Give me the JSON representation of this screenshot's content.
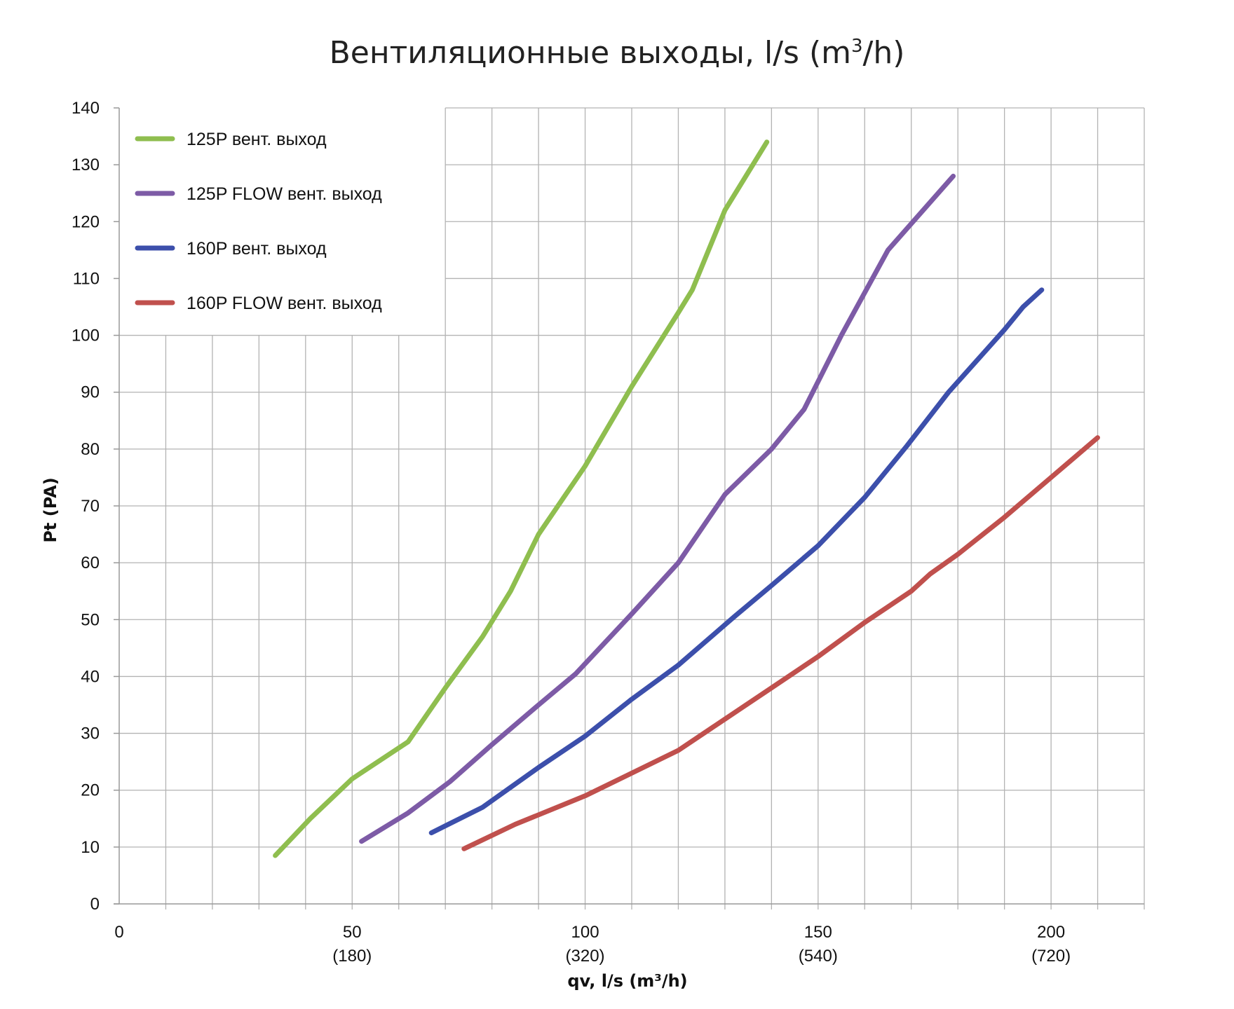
{
  "chart_data": {
    "type": "line",
    "title": {
      "main": "Вентиляционные выходы, l/s (m",
      "sup": "3",
      "end": "/h)"
    },
    "xlabel": "qv, l/s (m³/h)",
    "ylabel": "Pt (PA)",
    "xlim": [
      0,
      220
    ],
    "ylim": [
      0,
      140
    ],
    "x_grid_step": 10,
    "y_grid_step": 10,
    "grid": true,
    "legend_position": "top-left",
    "x_ticks": [
      {
        "value": 0,
        "label": "0",
        "sub": ""
      },
      {
        "value": 50,
        "label": "50",
        "sub": "(180)"
      },
      {
        "value": 100,
        "label": "100",
        "sub": "(320)"
      },
      {
        "value": 150,
        "label": "150",
        "sub": "(540)"
      },
      {
        "value": 200,
        "label": "200",
        "sub": "(720)"
      }
    ],
    "y_ticks": [
      0,
      10,
      20,
      30,
      40,
      50,
      60,
      70,
      80,
      90,
      100,
      110,
      120,
      130,
      140
    ],
    "series": [
      {
        "name": "125P вент. выход",
        "color": "#8fbe4f",
        "points": [
          [
            33.5,
            8.5
          ],
          [
            41,
            15
          ],
          [
            50,
            22
          ],
          [
            62,
            28.5
          ],
          [
            70,
            38
          ],
          [
            78,
            47
          ],
          [
            84,
            55
          ],
          [
            90,
            65
          ],
          [
            100,
            77
          ],
          [
            110,
            91
          ],
          [
            120,
            104
          ],
          [
            123,
            108
          ],
          [
            130,
            122
          ],
          [
            139,
            134
          ]
        ]
      },
      {
        "name": "125P FLOW вент. выход",
        "color": "#7d5ba6",
        "points": [
          [
            52,
            11
          ],
          [
            62,
            16
          ],
          [
            71,
            21.5
          ],
          [
            80,
            28
          ],
          [
            90,
            35
          ],
          [
            98,
            40.5
          ],
          [
            110,
            51
          ],
          [
            120,
            60
          ],
          [
            130,
            72
          ],
          [
            140,
            80
          ],
          [
            147,
            87
          ],
          [
            155,
            100
          ],
          [
            165,
            115
          ],
          [
            179,
            128
          ]
        ]
      },
      {
        "name": "160P вент. выход",
        "color": "#3c4fab",
        "points": [
          [
            67,
            12.5
          ],
          [
            78,
            17
          ],
          [
            90,
            24
          ],
          [
            100,
            29.5
          ],
          [
            110,
            36
          ],
          [
            120,
            42
          ],
          [
            132,
            50.5
          ],
          [
            140,
            56
          ],
          [
            150,
            63
          ],
          [
            160,
            71.5
          ],
          [
            169,
            80.5
          ],
          [
            178,
            90
          ],
          [
            190,
            101
          ],
          [
            194,
            105
          ],
          [
            198,
            108
          ]
        ]
      },
      {
        "name": "160P FLOW вент. выход",
        "color": "#c0504d",
        "points": [
          [
            74,
            9.7
          ],
          [
            85,
            14
          ],
          [
            100,
            19
          ],
          [
            110,
            23
          ],
          [
            120,
            27
          ],
          [
            130,
            32.5
          ],
          [
            140,
            38
          ],
          [
            150,
            43.5
          ],
          [
            160,
            49.5
          ],
          [
            170,
            55
          ],
          [
            174,
            58
          ],
          [
            180,
            61.5
          ],
          [
            190,
            68
          ],
          [
            200,
            75
          ],
          [
            210,
            82
          ]
        ]
      }
    ]
  }
}
